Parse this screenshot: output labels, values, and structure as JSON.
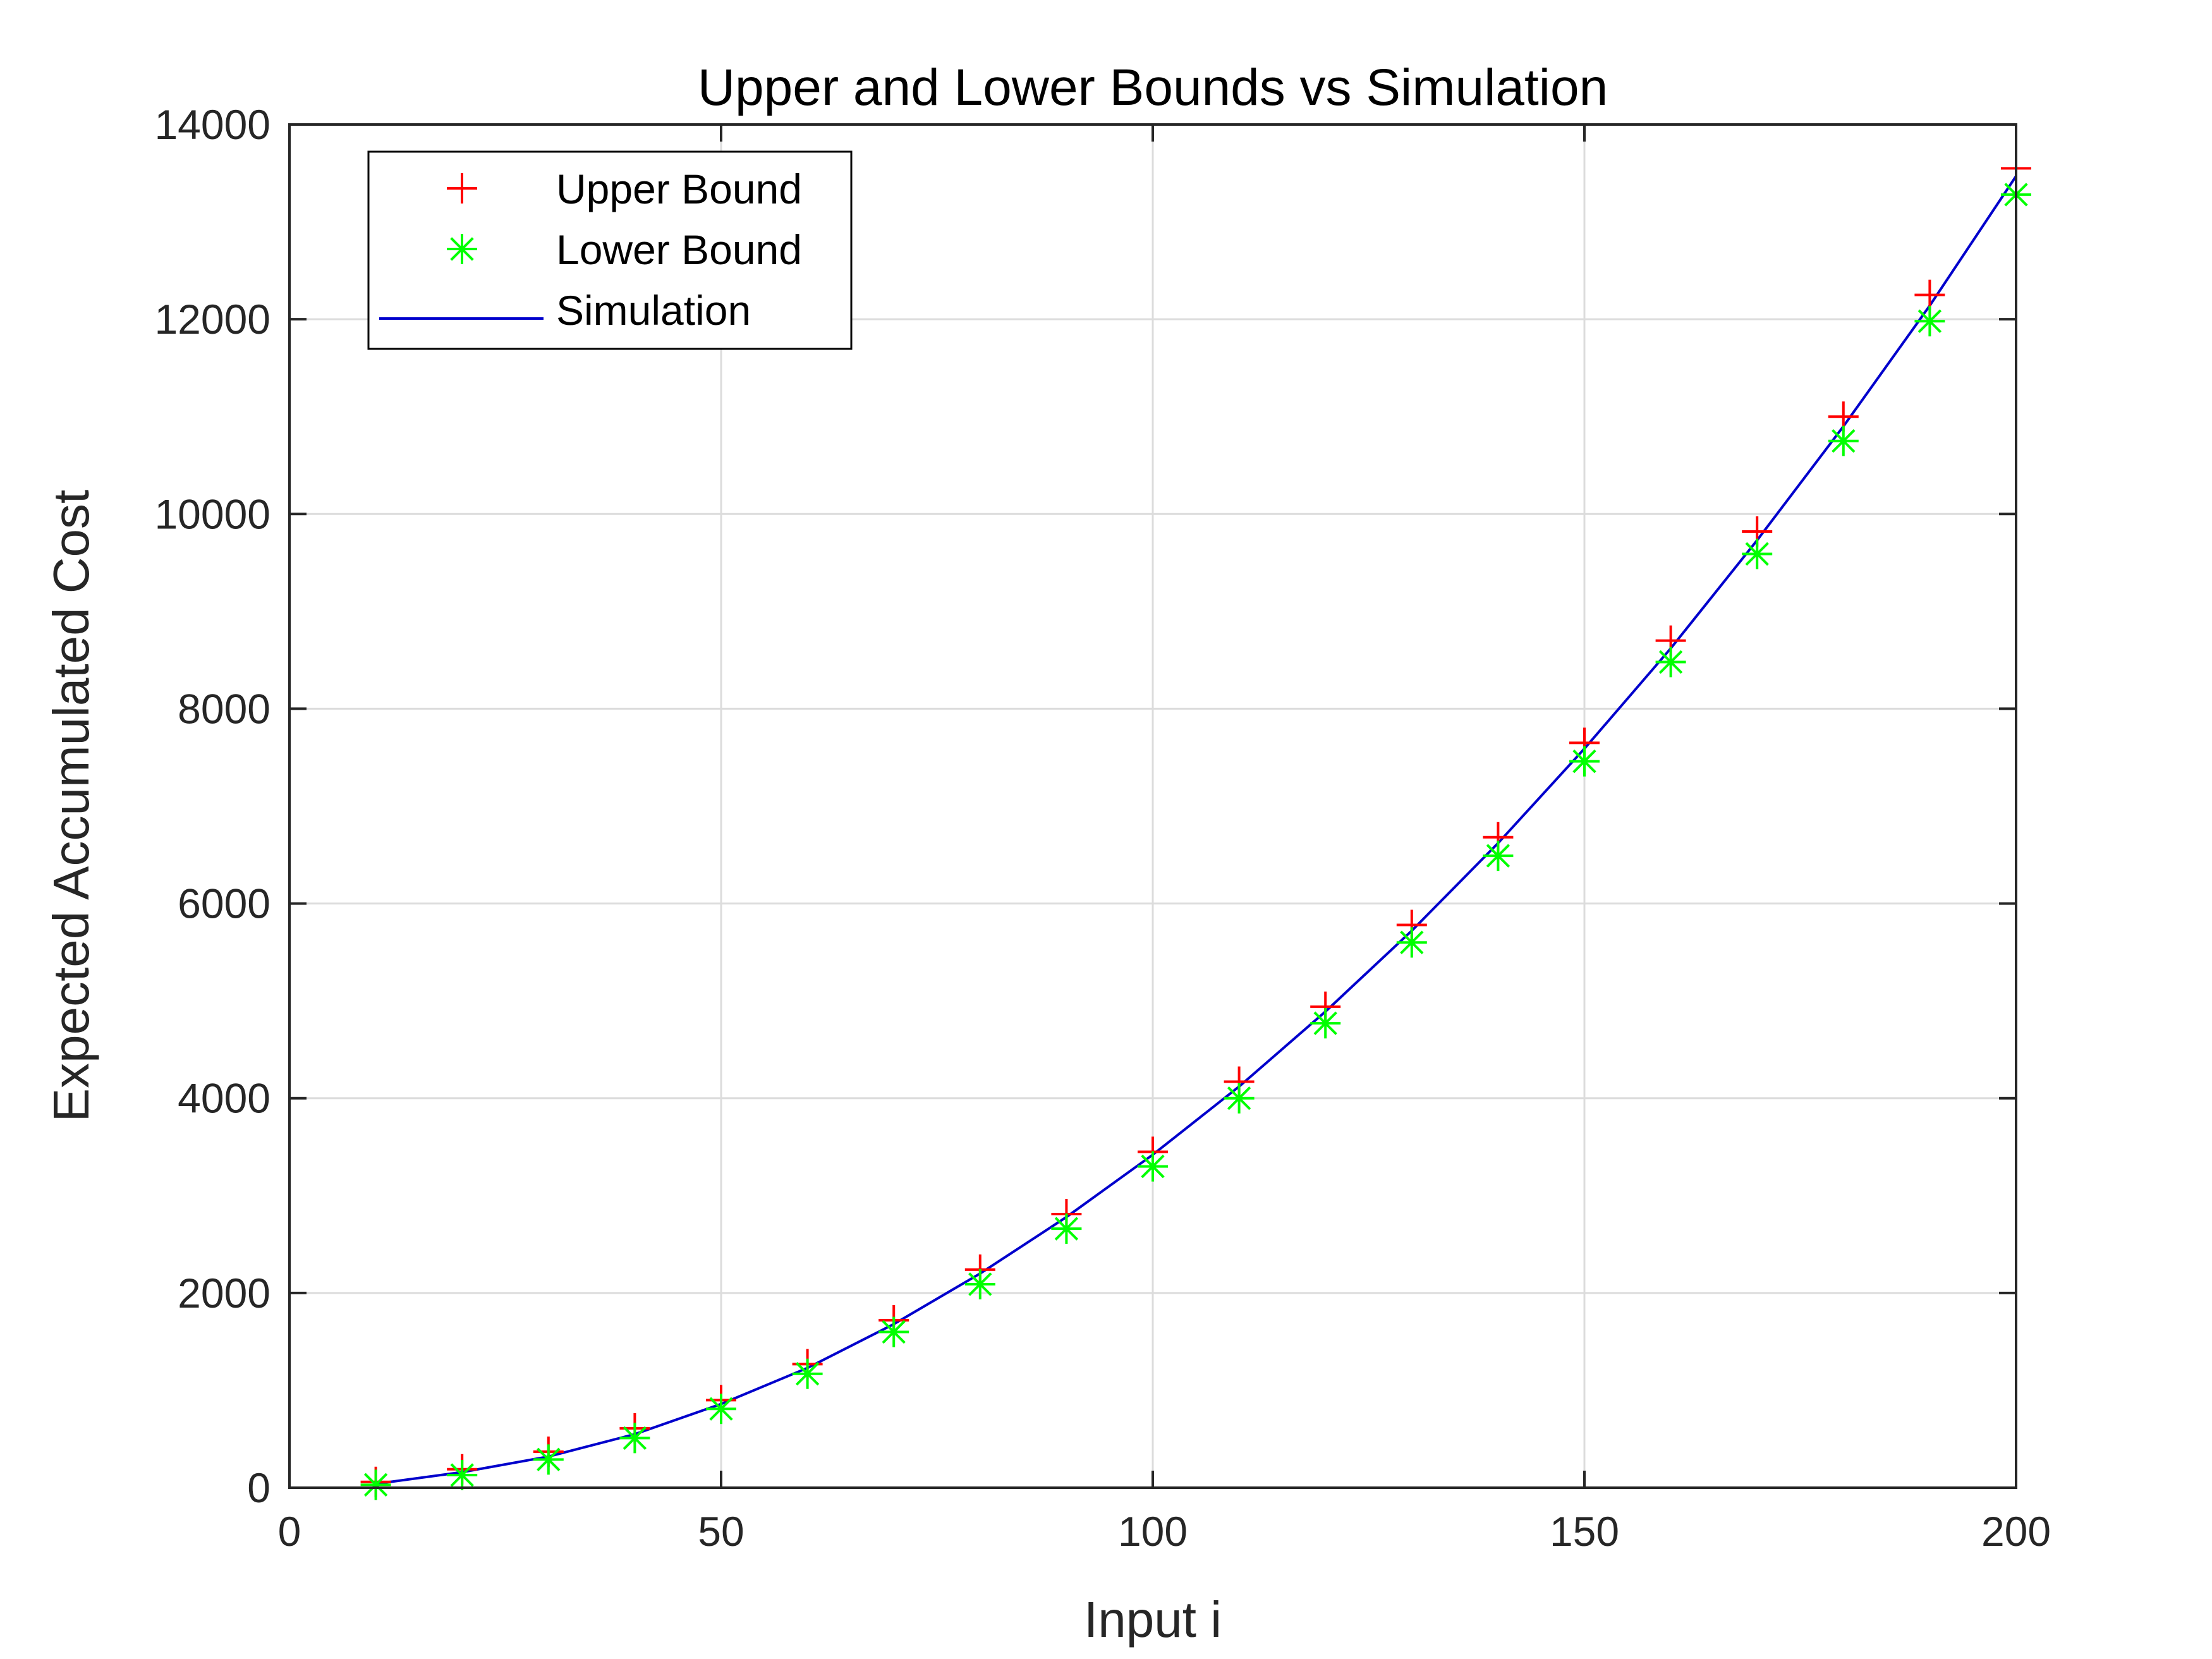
{
  "colors": {
    "upper": "#ff0000",
    "lower": "#00ff00",
    "simulation": "#0000cc",
    "axis": "#262626",
    "grid": "#dcdcdc"
  },
  "chart_data": {
    "type": "scatter",
    "title": "Upper and Lower Bounds vs Simulation",
    "xlabel": "Input i",
    "ylabel": "Expected Accumulated Cost",
    "xlim": [
      0,
      200
    ],
    "ylim": [
      0,
      14000
    ],
    "xticks": [
      0,
      50,
      100,
      150,
      200
    ],
    "yticks": [
      0,
      2000,
      4000,
      6000,
      8000,
      10000,
      12000,
      14000
    ],
    "grid": true,
    "legend_position": "top-left",
    "x": [
      10,
      20,
      30,
      40,
      50,
      60,
      70,
      80,
      90,
      100,
      110,
      120,
      130,
      140,
      150,
      160,
      170,
      180,
      190,
      200
    ],
    "series": [
      {
        "name": "Upper Bound",
        "marker": "plus",
        "color": "#ff0000",
        "values": [
          60,
          190,
          370,
          610,
          900,
          1270,
          1720,
          2240,
          2810,
          3450,
          4170,
          4940,
          5780,
          6680,
          7650,
          8700,
          9820,
          11000,
          12250,
          13550
        ]
      },
      {
        "name": "Lower Bound",
        "marker": "asterisk",
        "color": "#00ff00",
        "values": [
          30,
          130,
          290,
          510,
          810,
          1170,
          1600,
          2090,
          2660,
          3300,
          4000,
          4770,
          5600,
          6490,
          7460,
          8480,
          9590,
          10750,
          11980,
          13280
        ]
      },
      {
        "name": "Simulation",
        "marker": "line",
        "color": "#0000cc",
        "values": [
          40,
          160,
          320,
          550,
          860,
          1230,
          1680,
          2200,
          2780,
          3420,
          4120,
          4890,
          5720,
          6620,
          7590,
          8620,
          9730,
          10900,
          12140,
          13470
        ]
      }
    ]
  }
}
